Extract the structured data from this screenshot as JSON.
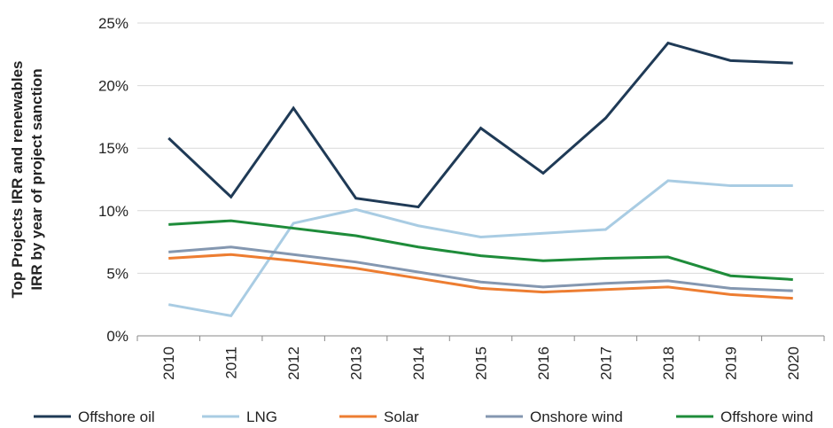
{
  "chart_data": {
    "type": "line",
    "ylabel": [
      "Top Projects IRR and renewables",
      "IRR by year of project sanction"
    ],
    "categories": [
      "2010",
      "2011",
      "2012",
      "2013",
      "2014",
      "2015",
      "2016",
      "2017",
      "2018",
      "2019",
      "2020"
    ],
    "series": [
      {
        "name": "Offshore oil",
        "color": "#1f3a56",
        "values": [
          15.8,
          11.1,
          18.2,
          11.0,
          10.3,
          16.6,
          13.0,
          17.4,
          23.4,
          22.0,
          21.8
        ]
      },
      {
        "name": "LNG",
        "color": "#a9cce3",
        "values": [
          2.5,
          1.6,
          9.0,
          10.1,
          8.8,
          7.9,
          8.2,
          8.5,
          12.4,
          12.0,
          12.0
        ]
      },
      {
        "name": "Solar",
        "color": "#ed7d31",
        "values": [
          6.2,
          6.5,
          6.0,
          5.4,
          4.6,
          3.8,
          3.5,
          3.7,
          3.9,
          3.3,
          3.0
        ]
      },
      {
        "name": "Onshore wind",
        "color": "#8497b0",
        "values": [
          6.7,
          7.1,
          6.5,
          5.9,
          5.1,
          4.3,
          3.9,
          4.2,
          4.4,
          3.8,
          3.6
        ]
      },
      {
        "name": "Offshore wind",
        "color": "#1e8c3a",
        "values": [
          8.9,
          9.2,
          8.6,
          8.0,
          7.1,
          6.4,
          6.0,
          6.2,
          6.3,
          4.8,
          4.5
        ]
      }
    ],
    "ylim": [
      0,
      25
    ],
    "yticks": [
      {
        "value": 0,
        "label": "0%"
      },
      {
        "value": 5,
        "label": "5%"
      },
      {
        "value": 10,
        "label": "10%"
      },
      {
        "value": 15,
        "label": "15%"
      },
      {
        "value": 20,
        "label": "20%"
      },
      {
        "value": 25,
        "label": "25%"
      }
    ],
    "grid": true,
    "legend": "bottom"
  }
}
